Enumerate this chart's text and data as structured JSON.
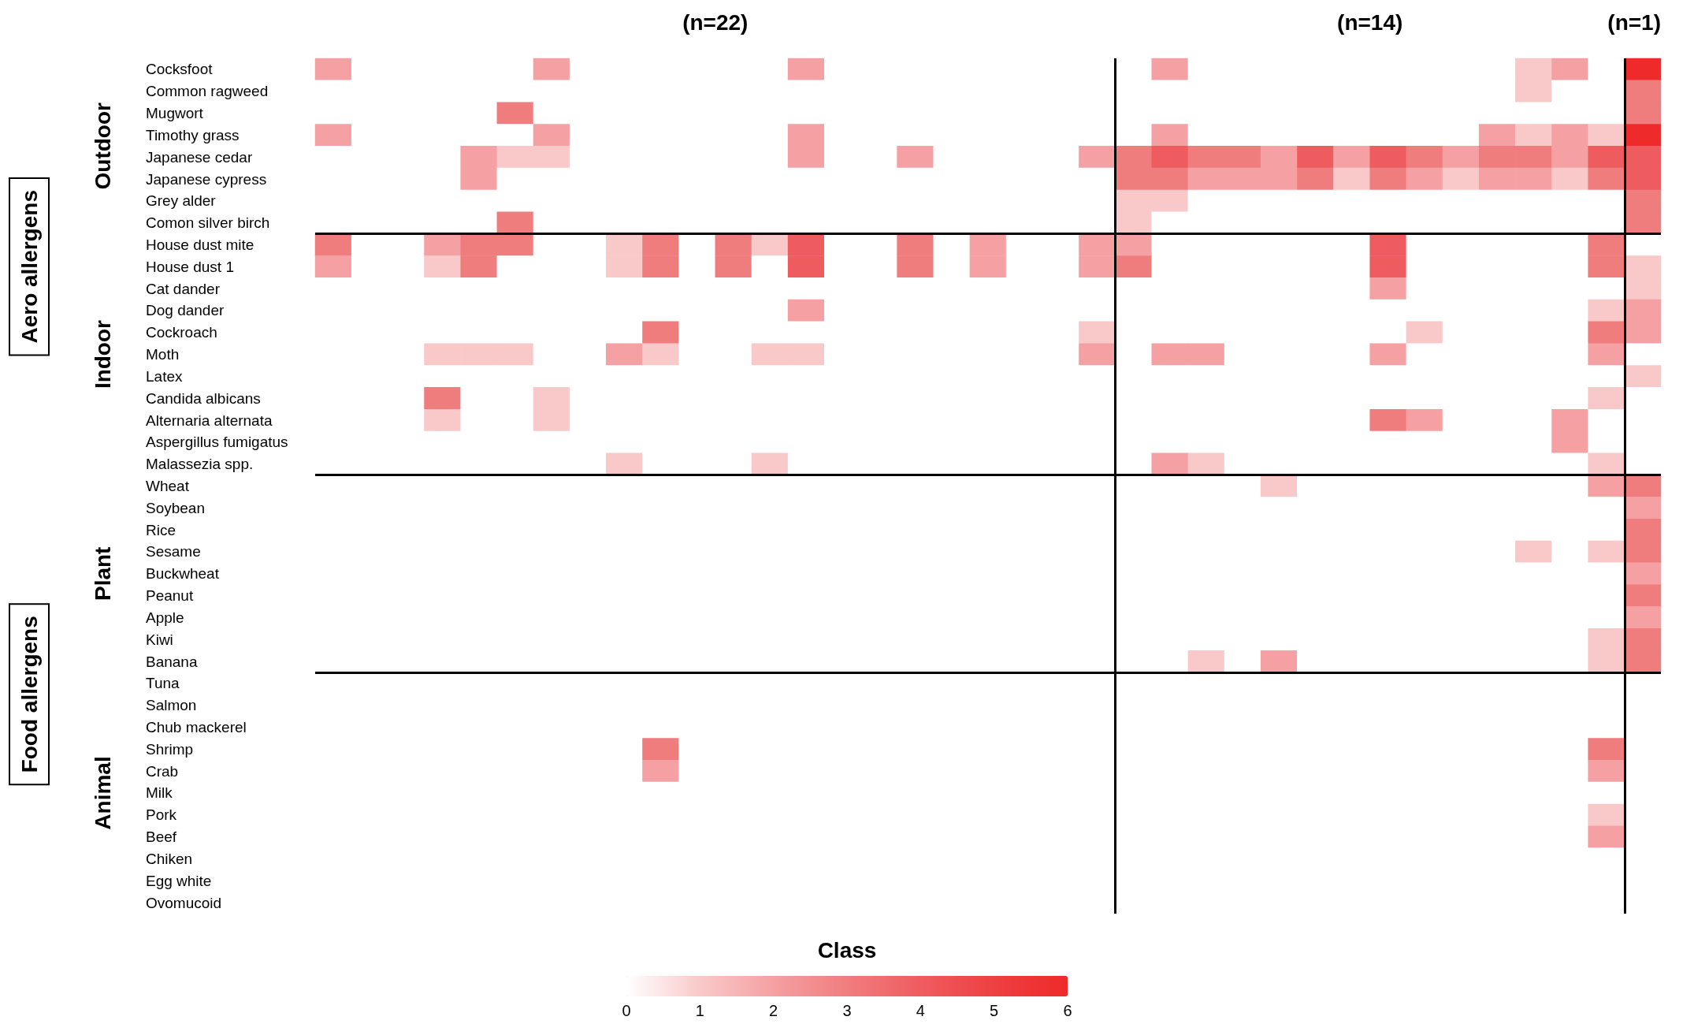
{
  "chart_data": {
    "type": "heatmap",
    "clabel": "Class",
    "categories": [
      null,
      null,
      null,
      null,
      null,
      null,
      null,
      null,
      null,
      null,
      null,
      null,
      null,
      null,
      null,
      null,
      null,
      null,
      null,
      null,
      null,
      null,
      null,
      null,
      null,
      null,
      null,
      null,
      null,
      null,
      null,
      null,
      null,
      null,
      null,
      null,
      null
    ],
    "y_categories": [
      "Cocksfoot",
      "Common ragweed",
      "Mugwort",
      "Timothy grass",
      "Japanese cedar",
      "Japanese cypress",
      "Grey alder",
      "Comon silver birch",
      "House dust mite",
      "House dust 1",
      "Cat dander",
      "Dog dander",
      "Cockroach",
      "Moth",
      "Latex",
      "Candida albicans",
      "Alternaria alternata",
      "Aspergillus fumigatus",
      "Malassezia spp.",
      "Wheat",
      "Soybean",
      "Rice",
      "Sesame",
      "Buckwheat",
      "Peanut",
      "Apple",
      "Kiwi",
      "Banana",
      "Tuna",
      "Salmon",
      "Chub mackerel",
      "Shrimp",
      "Crab",
      "Milk",
      "Pork",
      "Beef",
      "Chiken",
      "Egg white",
      "Ovomucoid"
    ],
    "cells": [
      [
        2,
        0,
        0,
        0,
        0,
        0,
        2,
        0,
        0,
        0,
        0,
        0,
        0,
        2,
        0,
        0,
        0,
        0,
        0,
        0,
        0,
        0,
        0,
        2,
        0,
        0,
        0,
        0,
        0,
        0,
        0,
        0,
        0,
        1,
        2,
        0,
        6
      ],
      [
        0,
        0,
        0,
        0,
        0,
        0,
        0,
        0,
        0,
        0,
        0,
        0,
        0,
        0,
        0,
        0,
        0,
        0,
        0,
        0,
        0,
        0,
        0,
        0,
        0,
        0,
        0,
        0,
        0,
        0,
        0,
        0,
        0,
        1,
        0,
        0,
        3
      ],
      [
        0,
        0,
        0,
        0,
        0,
        3,
        0,
        0,
        0,
        0,
        0,
        0,
        0,
        0,
        0,
        0,
        0,
        0,
        0,
        0,
        0,
        0,
        0,
        0,
        0,
        0,
        0,
        0,
        0,
        0,
        0,
        0,
        0,
        0,
        0,
        0,
        3
      ],
      [
        2,
        0,
        0,
        0,
        0,
        0,
        2,
        0,
        0,
        0,
        0,
        0,
        0,
        2,
        0,
        0,
        0,
        0,
        0,
        0,
        0,
        0,
        0,
        2,
        0,
        0,
        0,
        0,
        0,
        0,
        0,
        0,
        2,
        1,
        2,
        1,
        6
      ],
      [
        0,
        0,
        0,
        0,
        2,
        1,
        1,
        0,
        0,
        0,
        0,
        0,
        0,
        2,
        0,
        0,
        2,
        0,
        0,
        0,
        0,
        2,
        3,
        4,
        3,
        3,
        2,
        4,
        2,
        4,
        3,
        2,
        3,
        3,
        2,
        4,
        4
      ],
      [
        0,
        0,
        0,
        0,
        2,
        0,
        0,
        0,
        0,
        0,
        0,
        0,
        0,
        0,
        0,
        0,
        0,
        0,
        0,
        0,
        0,
        0,
        3,
        3,
        2,
        2,
        2,
        3,
        1,
        3,
        2,
        1,
        2,
        2,
        1,
        3,
        4
      ],
      [
        0,
        0,
        0,
        0,
        0,
        0,
        0,
        0,
        0,
        0,
        0,
        0,
        0,
        0,
        0,
        0,
        0,
        0,
        0,
        0,
        0,
        0,
        1,
        1,
        0,
        0,
        0,
        0,
        0,
        0,
        0,
        0,
        0,
        0,
        0,
        0,
        3
      ],
      [
        0,
        0,
        0,
        0,
        0,
        3,
        0,
        0,
        0,
        0,
        0,
        0,
        0,
        0,
        0,
        0,
        0,
        0,
        0,
        0,
        0,
        0,
        1,
        0,
        0,
        0,
        0,
        0,
        0,
        0,
        0,
        0,
        0,
        0,
        0,
        0,
        3
      ],
      [
        3,
        0,
        0,
        2,
        3,
        3,
        0,
        0,
        1,
        3,
        0,
        3,
        1,
        4,
        0,
        0,
        3,
        0,
        2,
        0,
        0,
        2,
        2,
        0,
        0,
        0,
        0,
        0,
        0,
        4,
        0,
        0,
        0,
        0,
        0,
        3,
        0
      ],
      [
        2,
        0,
        0,
        1,
        3,
        0,
        0,
        0,
        1,
        3,
        0,
        3,
        0,
        4,
        0,
        0,
        3,
        0,
        2,
        0,
        0,
        2,
        3,
        0,
        0,
        0,
        0,
        0,
        0,
        4,
        0,
        0,
        0,
        0,
        0,
        3,
        1
      ],
      [
        0,
        0,
        0,
        0,
        0,
        0,
        0,
        0,
        0,
        0,
        0,
        0,
        0,
        0,
        0,
        0,
        0,
        0,
        0,
        0,
        0,
        0,
        0,
        0,
        0,
        0,
        0,
        0,
        0,
        2,
        0,
        0,
        0,
        0,
        0,
        0,
        1
      ],
      [
        0,
        0,
        0,
        0,
        0,
        0,
        0,
        0,
        0,
        0,
        0,
        0,
        0,
        2,
        0,
        0,
        0,
        0,
        0,
        0,
        0,
        0,
        0,
        0,
        0,
        0,
        0,
        0,
        0,
        0,
        0,
        0,
        0,
        0,
        0,
        1,
        2
      ],
      [
        0,
        0,
        0,
        0,
        0,
        0,
        0,
        0,
        0,
        3,
        0,
        0,
        0,
        0,
        0,
        0,
        0,
        0,
        0,
        0,
        0,
        1,
        0,
        0,
        0,
        0,
        0,
        0,
        0,
        0,
        1,
        0,
        0,
        0,
        0,
        3,
        2
      ],
      [
        0,
        0,
        0,
        1,
        1,
        1,
        0,
        0,
        2,
        1,
        0,
        0,
        1,
        1,
        0,
        0,
        0,
        0,
        0,
        0,
        0,
        2,
        0,
        2,
        2,
        0,
        0,
        0,
        0,
        2,
        0,
        0,
        0,
        0,
        0,
        2,
        0
      ],
      [
        0,
        0,
        0,
        0,
        0,
        0,
        0,
        0,
        0,
        0,
        0,
        0,
        0,
        0,
        0,
        0,
        0,
        0,
        0,
        0,
        0,
        0,
        0,
        0,
        0,
        0,
        0,
        0,
        0,
        0,
        0,
        0,
        0,
        0,
        0,
        0,
        1
      ],
      [
        0,
        0,
        0,
        3,
        0,
        0,
        1,
        0,
        0,
        0,
        0,
        0,
        0,
        0,
        0,
        0,
        0,
        0,
        0,
        0,
        0,
        0,
        0,
        0,
        0,
        0,
        0,
        0,
        0,
        0,
        0,
        0,
        0,
        0,
        0,
        1,
        0
      ],
      [
        0,
        0,
        0,
        1,
        0,
        0,
        1,
        0,
        0,
        0,
        0,
        0,
        0,
        0,
        0,
        0,
        0,
        0,
        0,
        0,
        0,
        0,
        0,
        0,
        0,
        0,
        0,
        0,
        0,
        3,
        2,
        0,
        0,
        0,
        2,
        0,
        0
      ],
      [
        0,
        0,
        0,
        0,
        0,
        0,
        0,
        0,
        0,
        0,
        0,
        0,
        0,
        0,
        0,
        0,
        0,
        0,
        0,
        0,
        0,
        0,
        0,
        0,
        0,
        0,
        0,
        0,
        0,
        0,
        0,
        0,
        0,
        0,
        2,
        0,
        0
      ],
      [
        0,
        0,
        0,
        0,
        0,
        0,
        0,
        0,
        1,
        0,
        0,
        0,
        1,
        0,
        0,
        0,
        0,
        0,
        0,
        0,
        0,
        0,
        0,
        2,
        1,
        0,
        0,
        0,
        0,
        0,
        0,
        0,
        0,
        0,
        0,
        1,
        0
      ],
      [
        0,
        0,
        0,
        0,
        0,
        0,
        0,
        0,
        0,
        0,
        0,
        0,
        0,
        0,
        0,
        0,
        0,
        0,
        0,
        0,
        0,
        0,
        0,
        0,
        0,
        0,
        1,
        0,
        0,
        0,
        0,
        0,
        0,
        0,
        0,
        2,
        3
      ],
      [
        0,
        0,
        0,
        0,
        0,
        0,
        0,
        0,
        0,
        0,
        0,
        0,
        0,
        0,
        0,
        0,
        0,
        0,
        0,
        0,
        0,
        0,
        0,
        0,
        0,
        0,
        0,
        0,
        0,
        0,
        0,
        0,
        0,
        0,
        0,
        0,
        2
      ],
      [
        0,
        0,
        0,
        0,
        0,
        0,
        0,
        0,
        0,
        0,
        0,
        0,
        0,
        0,
        0,
        0,
        0,
        0,
        0,
        0,
        0,
        0,
        0,
        0,
        0,
        0,
        0,
        0,
        0,
        0,
        0,
        0,
        0,
        0,
        0,
        0,
        3
      ],
      [
        0,
        0,
        0,
        0,
        0,
        0,
        0,
        0,
        0,
        0,
        0,
        0,
        0,
        0,
        0,
        0,
        0,
        0,
        0,
        0,
        0,
        0,
        0,
        0,
        0,
        0,
        0,
        0,
        0,
        0,
        0,
        0,
        0,
        1,
        0,
        1,
        3
      ],
      [
        0,
        0,
        0,
        0,
        0,
        0,
        0,
        0,
        0,
        0,
        0,
        0,
        0,
        0,
        0,
        0,
        0,
        0,
        0,
        0,
        0,
        0,
        0,
        0,
        0,
        0,
        0,
        0,
        0,
        0,
        0,
        0,
        0,
        0,
        0,
        0,
        2
      ],
      [
        0,
        0,
        0,
        0,
        0,
        0,
        0,
        0,
        0,
        0,
        0,
        0,
        0,
        0,
        0,
        0,
        0,
        0,
        0,
        0,
        0,
        0,
        0,
        0,
        0,
        0,
        0,
        0,
        0,
        0,
        0,
        0,
        0,
        0,
        0,
        0,
        3
      ],
      [
        0,
        0,
        0,
        0,
        0,
        0,
        0,
        0,
        0,
        0,
        0,
        0,
        0,
        0,
        0,
        0,
        0,
        0,
        0,
        0,
        0,
        0,
        0,
        0,
        0,
        0,
        0,
        0,
        0,
        0,
        0,
        0,
        0,
        0,
        0,
        0,
        2
      ],
      [
        0,
        0,
        0,
        0,
        0,
        0,
        0,
        0,
        0,
        0,
        0,
        0,
        0,
        0,
        0,
        0,
        0,
        0,
        0,
        0,
        0,
        0,
        0,
        0,
        0,
        0,
        0,
        0,
        0,
        0,
        0,
        0,
        0,
        0,
        0,
        1,
        3
      ],
      [
        0,
        0,
        0,
        0,
        0,
        0,
        0,
        0,
        0,
        0,
        0,
        0,
        0,
        0,
        0,
        0,
        0,
        0,
        0,
        0,
        0,
        0,
        0,
        0,
        1,
        0,
        2,
        0,
        0,
        0,
        0,
        0,
        0,
        0,
        0,
        1,
        3
      ],
      [
        0,
        0,
        0,
        0,
        0,
        0,
        0,
        0,
        0,
        0,
        0,
        0,
        0,
        0,
        0,
        0,
        0,
        0,
        0,
        0,
        0,
        0,
        0,
        0,
        0,
        0,
        0,
        0,
        0,
        0,
        0,
        0,
        0,
        0,
        0,
        0,
        0
      ],
      [
        0,
        0,
        0,
        0,
        0,
        0,
        0,
        0,
        0,
        0,
        0,
        0,
        0,
        0,
        0,
        0,
        0,
        0,
        0,
        0,
        0,
        0,
        0,
        0,
        0,
        0,
        0,
        0,
        0,
        0,
        0,
        0,
        0,
        0,
        0,
        0,
        0
      ],
      [
        0,
        0,
        0,
        0,
        0,
        0,
        0,
        0,
        0,
        0,
        0,
        0,
        0,
        0,
        0,
        0,
        0,
        0,
        0,
        0,
        0,
        0,
        0,
        0,
        0,
        0,
        0,
        0,
        0,
        0,
        0,
        0,
        0,
        0,
        0,
        0,
        0
      ],
      [
        0,
        0,
        0,
        0,
        0,
        0,
        0,
        0,
        0,
        3,
        0,
        0,
        0,
        0,
        0,
        0,
        0,
        0,
        0,
        0,
        0,
        0,
        0,
        0,
        0,
        0,
        0,
        0,
        0,
        0,
        0,
        0,
        0,
        0,
        0,
        3,
        0
      ],
      [
        0,
        0,
        0,
        0,
        0,
        0,
        0,
        0,
        0,
        2,
        0,
        0,
        0,
        0,
        0,
        0,
        0,
        0,
        0,
        0,
        0,
        0,
        0,
        0,
        0,
        0,
        0,
        0,
        0,
        0,
        0,
        0,
        0,
        0,
        0,
        2,
        0
      ],
      [
        0,
        0,
        0,
        0,
        0,
        0,
        0,
        0,
        0,
        0,
        0,
        0,
        0,
        0,
        0,
        0,
        0,
        0,
        0,
        0,
        0,
        0,
        0,
        0,
        0,
        0,
        0,
        0,
        0,
        0,
        0,
        0,
        0,
        0,
        0,
        0,
        0
      ],
      [
        0,
        0,
        0,
        0,
        0,
        0,
        0,
        0,
        0,
        0,
        0,
        0,
        0,
        0,
        0,
        0,
        0,
        0,
        0,
        0,
        0,
        0,
        0,
        0,
        0,
        0,
        0,
        0,
        0,
        0,
        0,
        0,
        0,
        0,
        0,
        1,
        0
      ],
      [
        0,
        0,
        0,
        0,
        0,
        0,
        0,
        0,
        0,
        0,
        0,
        0,
        0,
        0,
        0,
        0,
        0,
        0,
        0,
        0,
        0,
        0,
        0,
        0,
        0,
        0,
        0,
        0,
        0,
        0,
        0,
        0,
        0,
        0,
        0,
        2,
        0
      ],
      [
        0,
        0,
        0,
        0,
        0,
        0,
        0,
        0,
        0,
        0,
        0,
        0,
        0,
        0,
        0,
        0,
        0,
        0,
        0,
        0,
        0,
        0,
        0,
        0,
        0,
        0,
        0,
        0,
        0,
        0,
        0,
        0,
        0,
        0,
        0,
        0,
        0
      ],
      [
        0,
        0,
        0,
        0,
        0,
        0,
        0,
        0,
        0,
        0,
        0,
        0,
        0,
        0,
        0,
        0,
        0,
        0,
        0,
        0,
        0,
        0,
        0,
        0,
        0,
        0,
        0,
        0,
        0,
        0,
        0,
        0,
        0,
        0,
        0,
        0,
        0
      ],
      [
        0,
        0,
        0,
        0,
        0,
        0,
        0,
        0,
        0,
        0,
        0,
        0,
        0,
        0,
        0,
        0,
        0,
        0,
        0,
        0,
        0,
        0,
        0,
        0,
        0,
        0,
        0,
        0,
        0,
        0,
        0,
        0,
        0,
        0,
        0,
        0,
        0
      ]
    ],
    "clim": [
      0,
      6
    ],
    "cticks": [
      0,
      1,
      2,
      3,
      4,
      5,
      6
    ],
    "colors": [
      "#ffffff",
      "#f9c9c9",
      "#f5a0a2",
      "#f07d7e",
      "#ef5c60",
      "#ee4042",
      "#ee2a2a"
    ],
    "tick_labels": "y",
    "annotations": [
      "(n=22)",
      "(n=14)",
      "(n=1)",
      "Outdoor",
      "Indoor",
      "Plant",
      "Animal",
      "Aero allergens",
      "Food allergens"
    ]
  }
}
